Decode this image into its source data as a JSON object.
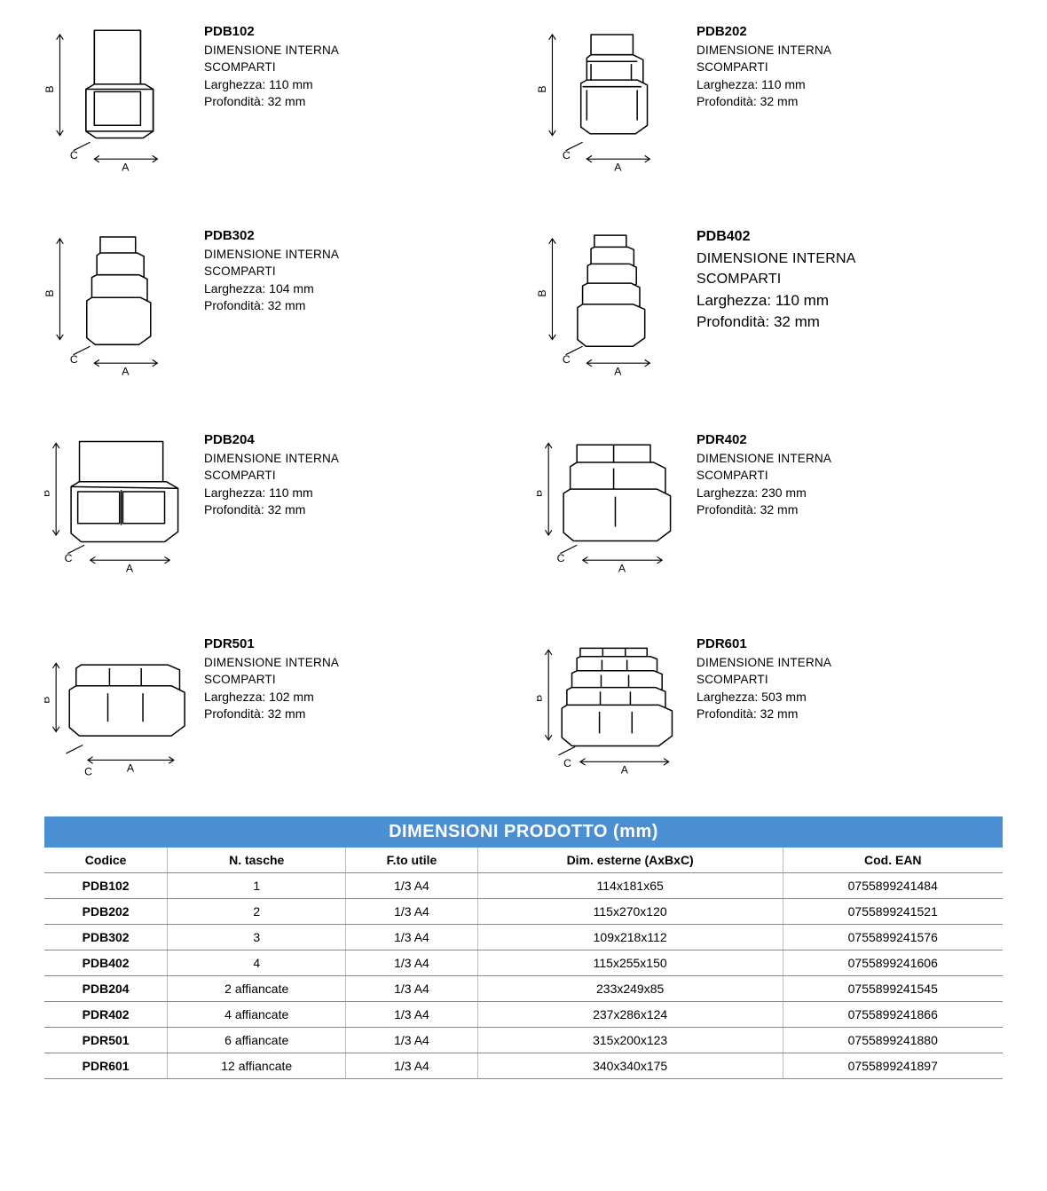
{
  "spec_heading": "DIMENSIONE INTERNA SCOMPARTI",
  "width_label": "Larghezza",
  "depth_label": "Profondità",
  "products": [
    {
      "code": "PDB102",
      "width": "110 mm",
      "depth": "32 mm",
      "big": false,
      "svg": "p1"
    },
    {
      "code": "PDB202",
      "width": "110 mm",
      "depth": "32 mm",
      "big": false,
      "svg": "p2"
    },
    {
      "code": "PDB302",
      "width": "104 mm",
      "depth": "32 mm",
      "big": false,
      "svg": "p3"
    },
    {
      "code": "PDB402",
      "width": "110 mm",
      "depth": "32 mm",
      "big": true,
      "svg": "p4"
    },
    {
      "code": "PDB204",
      "width": "110 mm",
      "depth": "32 mm",
      "big": false,
      "svg": "p5"
    },
    {
      "code": "PDR402",
      "width": "230 mm",
      "depth": "32 mm",
      "big": false,
      "svg": "p6"
    },
    {
      "code": "PDR501",
      "width": "102 mm",
      "depth": "32 mm",
      "big": false,
      "svg": "p7"
    },
    {
      "code": "PDR601",
      "width": "503 mm",
      "depth": "32 mm",
      "big": false,
      "svg": "p8"
    }
  ],
  "table": {
    "title": "DIMENSIONI PRODOTTO (mm)",
    "columns": [
      "Codice",
      "N. tasche",
      "F.to utile",
      "Dim. esterne (AxBxC)",
      "Cod. EAN"
    ],
    "rows": [
      [
        "PDB102",
        "1",
        "1/3 A4",
        "114x181x65",
        "0755899241484"
      ],
      [
        "PDB202",
        "2",
        "1/3 A4",
        "115x270x120",
        "0755899241521"
      ],
      [
        "PDB302",
        "3",
        "1/3 A4",
        "109x218x112",
        "0755899241576"
      ],
      [
        "PDB402",
        "4",
        "1/3 A4",
        "115x255x150",
        "0755899241606"
      ],
      [
        "PDB204",
        "2 affiancate",
        "1/3 A4",
        "233x249x85",
        "0755899241545"
      ],
      [
        "PDR402",
        "4 affiancate",
        "1/3 A4",
        "237x286x124",
        "0755899241866"
      ],
      [
        "PDR501",
        "6 affiancate",
        "1/3 A4",
        "315x200x123",
        "0755899241880"
      ],
      [
        "PDR601",
        "12 affiancate",
        "1/3 A4",
        "340x340x175",
        "0755899241897"
      ]
    ],
    "title_bg": "#4a8fd1",
    "title_color": "#ffffff"
  },
  "axis_labels": {
    "a": "A",
    "b": "B",
    "c": "C"
  },
  "stroke": "#000000",
  "stroke_width": 1.5
}
